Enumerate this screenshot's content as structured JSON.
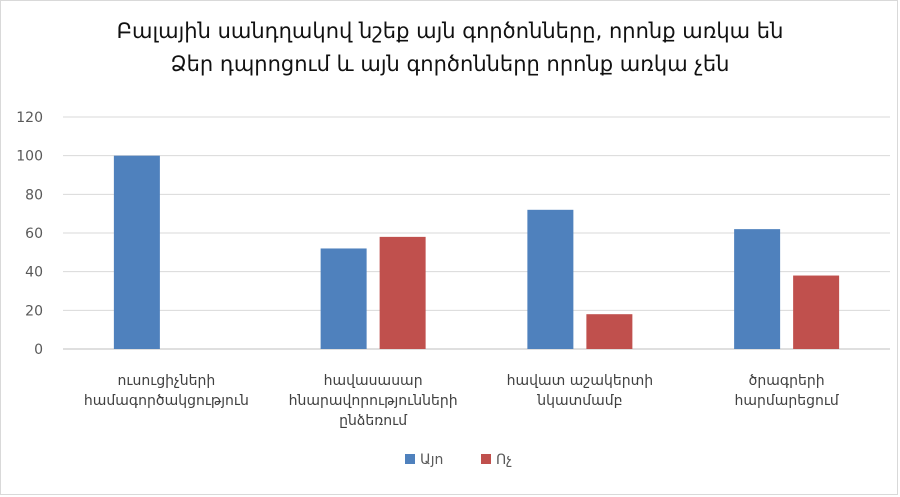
{
  "chart_data": {
    "type": "bar",
    "title_lines": [
      "Բալային սանդղակով նշեք այն գործոնները, որոնք առկա են",
      "Ձեր դպրոցում և այն  գործոնները որոնք առկա չեն"
    ],
    "categories": [
      [
        "ուսուցիչների",
        "համագործակցություն"
      ],
      [
        "հավասասար",
        "հնարավորությունների",
        "ընձեռում"
      ],
      [
        "հավատ աշակերտի",
        "նկատմամբ"
      ],
      [
        "ծրագրերի",
        "հարմարեցում"
      ]
    ],
    "series": [
      {
        "name": "Այո",
        "color": "#4f81bd",
        "values": [
          100,
          52,
          72,
          62
        ]
      },
      {
        "name": "Ոչ",
        "color": "#c0504d",
        "values": [
          null,
          58,
          18,
          38
        ]
      }
    ],
    "ylim": [
      0,
      120
    ],
    "yticks": [
      0,
      20,
      40,
      60,
      80,
      100,
      120
    ],
    "grid": true,
    "legend_position": "bottom"
  }
}
